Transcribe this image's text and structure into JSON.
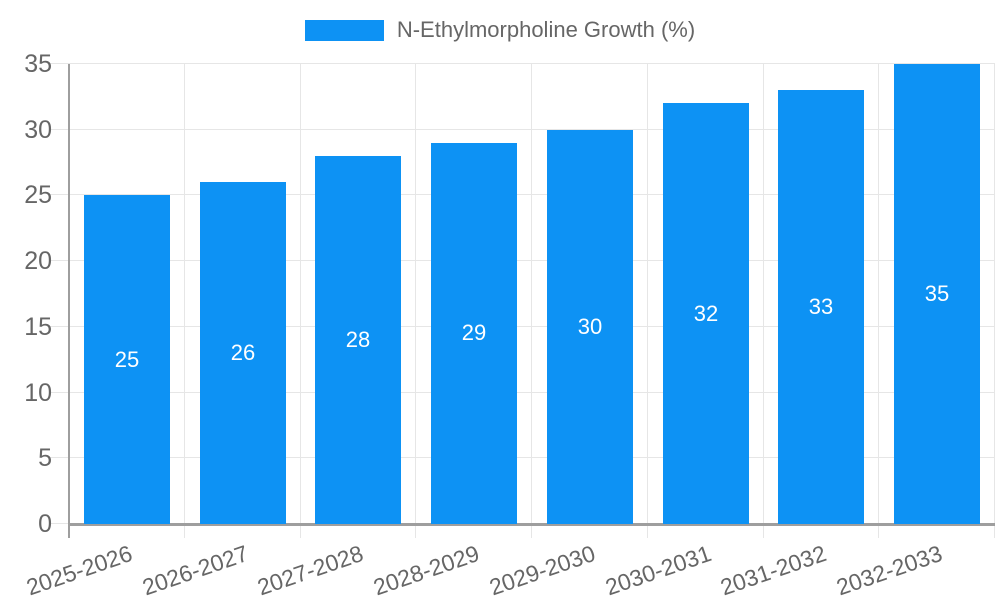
{
  "chart_data": {
    "type": "bar",
    "title": "",
    "legend": {
      "label": "N-Ethylmorpholine Growth (%)",
      "position": "top"
    },
    "categories": [
      "2025-2026",
      "2026-2027",
      "2027-2028",
      "2028-2029",
      "2029-2030",
      "2030-2031",
      "2031-2032",
      "2032-2033"
    ],
    "series": [
      {
        "name": "N-Ethylmorpholine Growth (%)",
        "values": [
          25,
          26,
          28,
          29,
          30,
          32,
          33,
          35
        ]
      }
    ],
    "xlabel": "",
    "ylabel": "",
    "ylim": [
      0,
      35
    ],
    "y_ticks": [
      0,
      5,
      10,
      15,
      20,
      25,
      30,
      35
    ],
    "grid": true,
    "x_label_rotation_deg": -19,
    "colors": {
      "bar": "#0d92f4",
      "grid": "#e6e6e6",
      "axis": "#9e9e9e",
      "tick_label": "#666666",
      "bar_label": "#ffffff",
      "legend_text": "#666666",
      "background": "#ffffff"
    }
  }
}
